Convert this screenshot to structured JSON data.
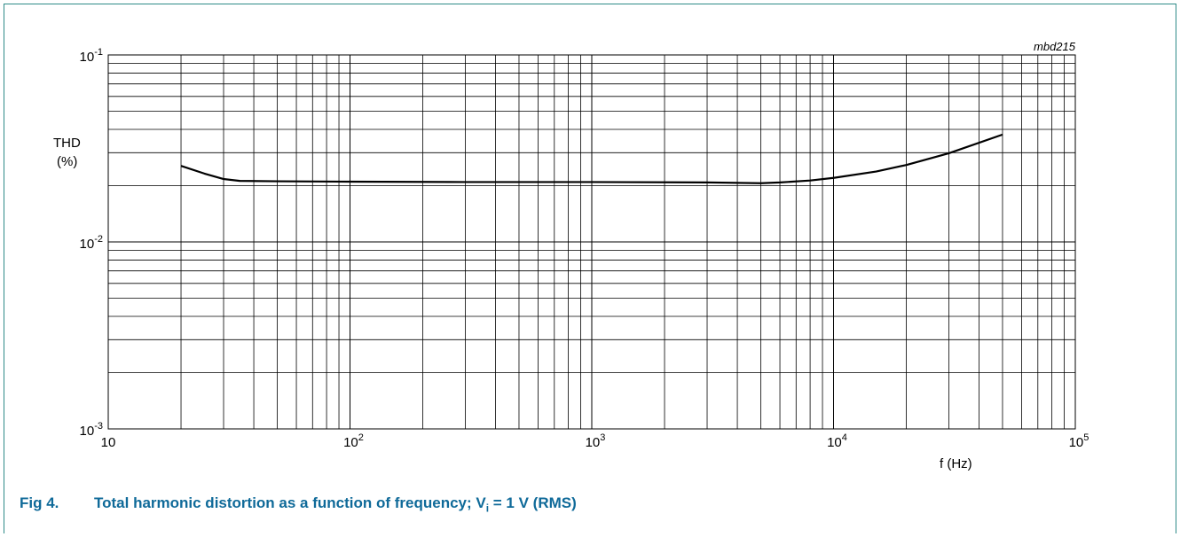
{
  "figure": {
    "number": "Fig 4.",
    "caption_pre": "Total harmonic distortion as a function of frequency; V",
    "caption_sub": "i",
    "caption_post": " = 1 V (RMS)",
    "id": "mbd215",
    "border_color": "#2e8b88",
    "caption_color": "#0f6a99"
  },
  "chart_data": {
    "type": "line",
    "title": "",
    "ylabel_line1": "THD",
    "ylabel_line2": "(%)",
    "xlabel": "f (Hz)",
    "x_scale": "log",
    "y_scale": "log",
    "xlim": [
      10,
      100000
    ],
    "ylim": [
      0.001,
      0.1
    ],
    "grid": true,
    "x_ticks": [
      {
        "value": 10,
        "base": "10",
        "exp": ""
      },
      {
        "value": 100,
        "base": "10",
        "exp": "2"
      },
      {
        "value": 1000,
        "base": "10",
        "exp": "3"
      },
      {
        "value": 10000,
        "base": "10",
        "exp": "4"
      },
      {
        "value": 100000,
        "base": "10",
        "exp": "5"
      }
    ],
    "y_ticks": [
      {
        "value": 0.1,
        "base": "10",
        "exp": "-1"
      },
      {
        "value": 0.01,
        "base": "10",
        "exp": "-2"
      },
      {
        "value": 0.001,
        "base": "10",
        "exp": "-3"
      }
    ],
    "series": [
      {
        "color": "#000000",
        "x": [
          20,
          25,
          30,
          35,
          50,
          100,
          300,
          1000,
          3000,
          5000,
          6000,
          8000,
          10000,
          15000,
          20000,
          30000,
          50000
        ],
        "y": [
          0.0255,
          0.0232,
          0.0217,
          0.0212,
          0.0211,
          0.021,
          0.0209,
          0.0209,
          0.0208,
          0.0206,
          0.0208,
          0.0213,
          0.022,
          0.0238,
          0.0258,
          0.0298,
          0.0375
        ]
      }
    ]
  }
}
